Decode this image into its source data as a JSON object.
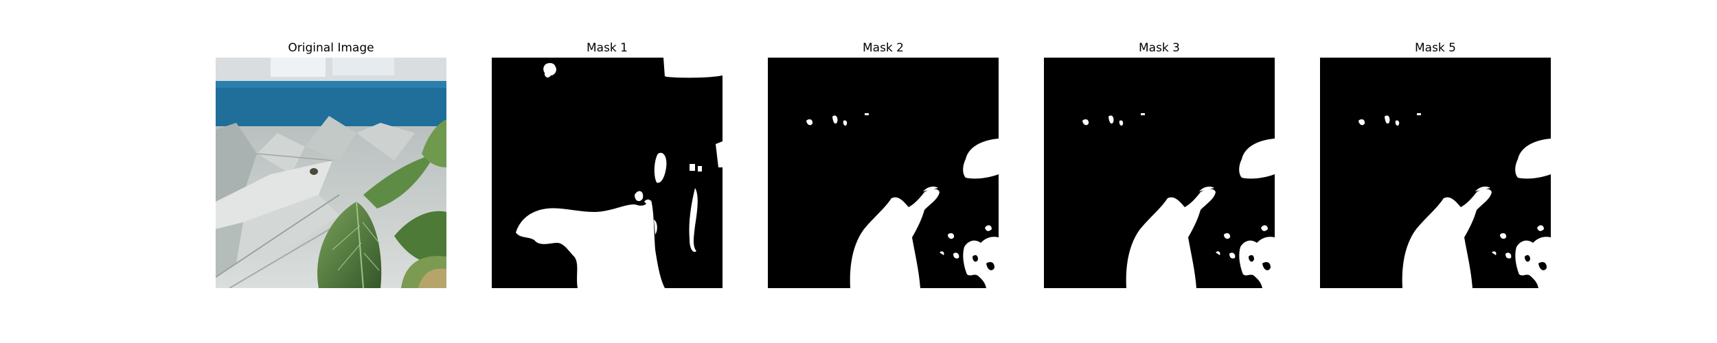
{
  "panels": [
    {
      "title": "Original Image"
    },
    {
      "title": "Mask 1"
    },
    {
      "title": "Mask 2"
    },
    {
      "title": "Mask 3"
    },
    {
      "title": "Mask 5"
    }
  ],
  "colors": {
    "background": "#ffffff",
    "mask_background": "#000000",
    "mask_foreground": "#ffffff",
    "wall_blue": "#1f6f9a",
    "leaf_green": "#4e7a3a",
    "roof_gray": "#c9cdca"
  }
}
